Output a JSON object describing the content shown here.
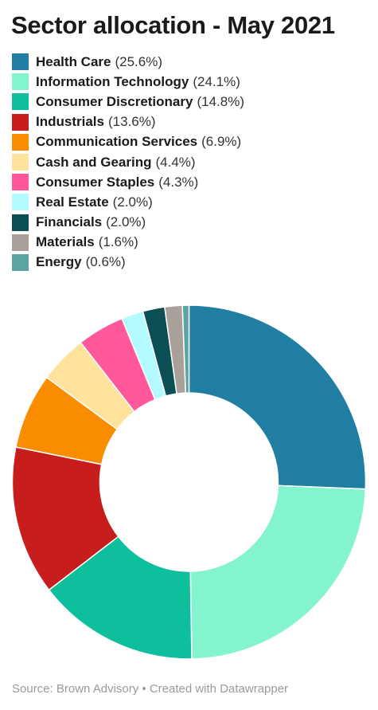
{
  "chart_data": {
    "type": "pie",
    "title": "Sector allocation - May 2021",
    "style": "donut",
    "legend_position": "top",
    "slices": [
      {
        "name": "Health Care",
        "label": "(25.6%)",
        "value": 25.6,
        "color": "#1f7ea1"
      },
      {
        "name": "Information Technology",
        "label": "(24.1%)",
        "value": 24.1,
        "color": "#84f4cf"
      },
      {
        "name": "Consumer Discretionary",
        "label": "(14.8%)",
        "value": 14.8,
        "color": "#0dbf9c"
      },
      {
        "name": "Industrials",
        "label": "(13.6%)",
        "value": 13.6,
        "color": "#c71e1d"
      },
      {
        "name": "Communication Services",
        "label": "(6.9%)",
        "value": 6.9,
        "color": "#fa8c00"
      },
      {
        "name": "Cash and Gearing",
        "label": "(4.4%)",
        "value": 4.4,
        "color": "#ffe29b"
      },
      {
        "name": "Consumer Staples",
        "label": "(4.3%)",
        "value": 4.3,
        "color": "#ff589b"
      },
      {
        "name": "Real Estate",
        "label": "(2.0%)",
        "value": 2.0,
        "color": "#b4fbff"
      },
      {
        "name": "Financials",
        "label": "(2.0%)",
        "value": 2.0,
        "color": "#0b4e53"
      },
      {
        "name": "Materials",
        "label": "(1.6%)",
        "value": 1.6,
        "color": "#a9a09a"
      },
      {
        "name": "Energy",
        "label": "(0.6%)",
        "value": 0.6,
        "color": "#5aa5a4"
      }
    ]
  },
  "footer": {
    "source": "Source: Brown Advisory • Created with Datawrapper"
  }
}
